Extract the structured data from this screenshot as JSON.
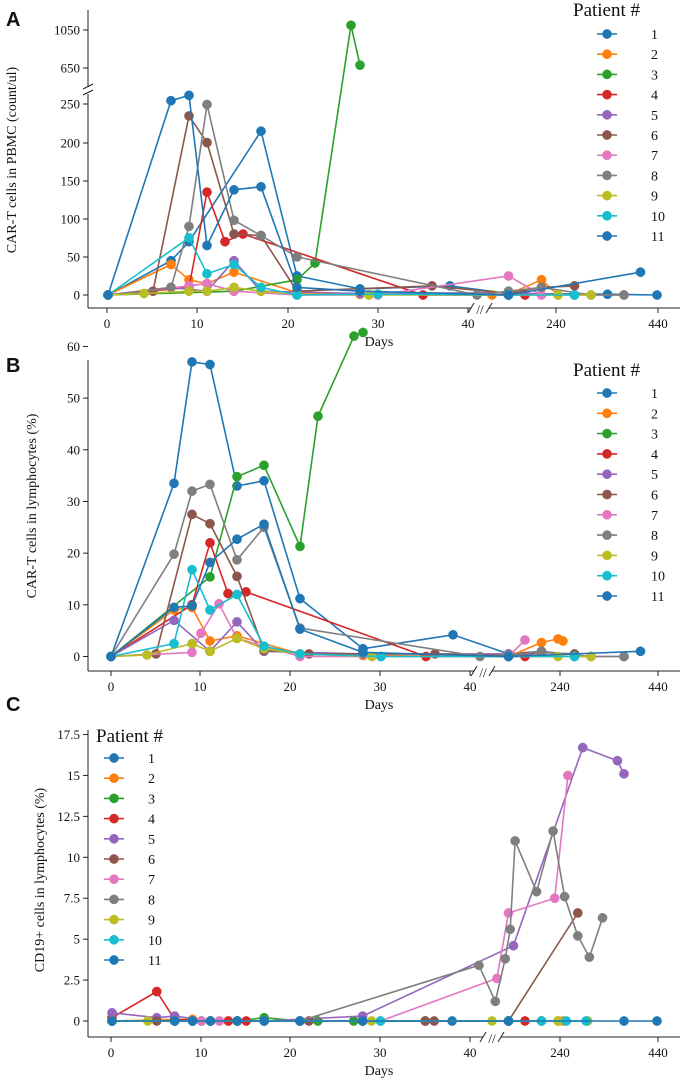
{
  "figure": {
    "colors": [
      "#1f77b4",
      "#ff7f0e",
      "#2ca02c",
      "#d62728",
      "#9467bd",
      "#8c564b",
      "#e377c2",
      "#7f7f7f",
      "#bcbd22",
      "#17becf",
      "#1f77b4"
    ]
  },
  "chart_data": [
    {
      "panel": "A",
      "type": "line",
      "title": "",
      "xlabel": "Days",
      "ylabel": "CAR-T cells in PBMC  (count/ul)",
      "legend_title": "Patient #",
      "legend_position": "right",
      "xticks": [
        "0",
        "10",
        "20",
        "30",
        "40",
        "240",
        "440"
      ],
      "x_axis_break": "//",
      "y_axis_break": "//",
      "yticks": [
        "0",
        "50",
        "100",
        "150",
        "200",
        "250",
        "650",
        "1050"
      ],
      "series": [
        {
          "name": "1",
          "x": [
            0,
            7,
            9,
            17,
            21,
            28,
            38,
            44,
            50,
            53
          ],
          "y": [
            0,
            45,
            70,
            215,
            25,
            8,
            12,
            2,
            1,
            0
          ]
        },
        {
          "name": "2",
          "x": [
            0,
            7,
            9,
            11,
            14,
            21,
            28,
            43,
            44,
            46,
            47
          ],
          "y": [
            0,
            40,
            20,
            15,
            30,
            3,
            1,
            0,
            1,
            20,
            0
          ]
        },
        {
          "name": "3",
          "x": [
            0,
            14,
            21,
            23,
            27,
            28
          ],
          "y": [
            0,
            5,
            20,
            42,
            1100,
            680
          ]
        },
        {
          "name": "4",
          "x": [
            0,
            9,
            11,
            13,
            15,
            35,
            44,
            45
          ],
          "y": [
            0,
            10,
            135,
            70,
            80,
            0,
            0,
            0
          ]
        },
        {
          "name": "5",
          "x": [
            0,
            7,
            11,
            14,
            17,
            28,
            44,
            48,
            51
          ],
          "y": [
            0,
            10,
            5,
            45,
            5,
            2,
            3,
            0,
            0
          ]
        },
        {
          "name": "6",
          "x": [
            0,
            5,
            9,
            11,
            14,
            17,
            21,
            36,
            44,
            46,
            48
          ],
          "y": [
            0,
            5,
            235,
            200,
            80,
            78,
            5,
            12,
            2,
            10,
            12
          ]
        },
        {
          "name": "7",
          "x": [
            0,
            9,
            11,
            14,
            21,
            30,
            44,
            46
          ],
          "y": [
            0,
            12,
            15,
            5,
            0,
            0,
            25,
            0
          ]
        },
        {
          "name": "8",
          "x": [
            0,
            7,
            9,
            11,
            14,
            17,
            21,
            41,
            44,
            46,
            49,
            51
          ],
          "y": [
            0,
            10,
            90,
            250,
            98,
            78,
            50,
            0,
            5,
            10,
            0,
            0
          ]
        },
        {
          "name": "9",
          "x": [
            0,
            4,
            9,
            11,
            14,
            17,
            21,
            29,
            44,
            47,
            49
          ],
          "y": [
            0,
            2,
            5,
            5,
            10,
            5,
            1,
            0,
            0,
            0,
            0
          ]
        },
        {
          "name": "10",
          "x": [
            0,
            9,
            11,
            14,
            17,
            21,
            30,
            44,
            48
          ],
          "y": [
            0,
            75,
            28,
            40,
            10,
            0,
            1,
            0,
            0
          ]
        },
        {
          "name": "11",
          "x": [
            0,
            7,
            9,
            11,
            14,
            17,
            21,
            28,
            44,
            52
          ],
          "y": [
            0,
            255,
            262,
            65,
            138,
            142,
            10,
            5,
            0,
            30
          ]
        }
      ]
    },
    {
      "panel": "B",
      "type": "line",
      "title": "",
      "xlabel": "Days",
      "ylabel": "CAR-T cells in lymphocytes (%)",
      "legend_title": "Patient #",
      "legend_position": "right",
      "xticks": [
        "0",
        "10",
        "20",
        "30",
        "40",
        "240",
        "440"
      ],
      "x_axis_break": "//",
      "yticks": [
        "0",
        "10",
        "20",
        "30",
        "40",
        "50",
        "60"
      ],
      "ylim": [
        -1,
        65
      ],
      "series": [
        {
          "name": "1",
          "x": [
            0,
            7,
            9,
            11,
            14,
            17,
            21,
            28,
            38,
            44,
            46
          ],
          "y": [
            0,
            33.5,
            57,
            56.5,
            33,
            34,
            11.2,
            1.5,
            4.2,
            0.5,
            1
          ]
        },
        {
          "name": "2",
          "x": [
            0,
            7,
            9,
            11,
            14,
            21,
            28,
            44,
            46,
            47,
            47.3
          ],
          "y": [
            0,
            9,
            9.5,
            3,
            4,
            0.5,
            0.2,
            0,
            2.7,
            3.4,
            3
          ]
        },
        {
          "name": "3",
          "x": [
            0,
            11,
            14,
            17,
            21,
            23,
            27,
            28
          ],
          "y": [
            0,
            15.4,
            34.8,
            37,
            21.3,
            46.5,
            62,
            62.7
          ]
        },
        {
          "name": "4",
          "x": [
            0,
            9,
            11,
            13,
            15,
            35,
            44,
            45
          ],
          "y": [
            0,
            10,
            22,
            12.2,
            12.5,
            0,
            0,
            0
          ]
        },
        {
          "name": "5",
          "x": [
            0,
            7,
            11,
            14,
            17,
            28,
            44,
            48,
            51
          ],
          "y": [
            0,
            7,
            1,
            6.7,
            1,
            0.5,
            0.5,
            0,
            0
          ]
        },
        {
          "name": "6",
          "x": [
            0,
            5,
            9,
            11,
            14,
            17,
            22,
            36,
            44,
            46,
            48
          ],
          "y": [
            0,
            0.5,
            27.5,
            25.7,
            15.5,
            1.2,
            0.5,
            0.5,
            0.2,
            0.8,
            0.5
          ]
        },
        {
          "name": "7",
          "x": [
            0,
            9,
            10,
            12,
            14,
            21,
            30,
            44,
            45
          ],
          "y": [
            0,
            0.8,
            4.5,
            10.2,
            3.5,
            0,
            0,
            0,
            3.2
          ]
        },
        {
          "name": "8",
          "x": [
            0,
            7,
            9,
            11,
            14,
            17,
            21,
            41,
            44,
            46,
            49,
            51
          ],
          "y": [
            0,
            19.8,
            32,
            33.3,
            18.7,
            25,
            5.5,
            0,
            0.2,
            1,
            0,
            0
          ]
        },
        {
          "name": "9",
          "x": [
            0,
            4,
            9,
            11,
            14,
            17,
            21,
            29,
            44,
            47,
            49
          ],
          "y": [
            0,
            0.3,
            2.5,
            1,
            3.5,
            1.5,
            0.5,
            0,
            0,
            0,
            0
          ]
        },
        {
          "name": "10",
          "x": [
            0,
            7,
            9,
            11,
            14,
            17,
            21,
            30,
            44,
            48
          ],
          "y": [
            0,
            2.5,
            16.8,
            9,
            12,
            2,
            0.5,
            0,
            0,
            0
          ]
        },
        {
          "name": "11",
          "x": [
            0,
            7,
            9,
            11,
            14,
            17,
            21,
            28,
            44,
            52
          ],
          "y": [
            0,
            9.5,
            9.8,
            18.2,
            22.7,
            25.6,
            5.3,
            0.8,
            0,
            1
          ]
        }
      ]
    },
    {
      "panel": "C",
      "type": "line",
      "title": "",
      "xlabel": "Days",
      "ylabel": "CD19+ cells in lymphocytes (%)",
      "legend_title": "Patient #",
      "legend_position": "top-left",
      "xticks": [
        "0",
        "10",
        "20",
        "30",
        "40",
        "240",
        "440"
      ],
      "x_axis_break": "//",
      "yticks": [
        "0",
        "2.5",
        "5",
        "7.5",
        "10",
        "12.5",
        "15",
        "17.5"
      ],
      "ylim": [
        -0.3,
        17.8
      ],
      "series": [
        {
          "name": "1",
          "x": [
            0,
            7,
            10,
            14,
            21,
            28,
            38,
            44,
            46
          ],
          "y": [
            0,
            0,
            0,
            0,
            0,
            0,
            0,
            0,
            0
          ]
        },
        {
          "name": "2",
          "x": [
            0,
            7,
            9,
            11,
            14,
            21,
            28,
            44,
            46,
            47,
            47.3
          ],
          "y": [
            0,
            0.1,
            0.1,
            0,
            0,
            0,
            0,
            0,
            0,
            0,
            0
          ]
        },
        {
          "name": "3",
          "x": [
            0,
            11,
            14,
            17,
            21,
            23,
            27,
            28
          ],
          "y": [
            0,
            0,
            0,
            0.2,
            0,
            0,
            0,
            0
          ]
        },
        {
          "name": "4",
          "x": [
            0,
            5,
            7,
            11,
            13,
            15,
            35,
            44,
            45
          ],
          "y": [
            0.2,
            1.8,
            0.1,
            0,
            0,
            0,
            0,
            0,
            0
          ]
        },
        {
          "name": "5",
          "x": [
            0,
            5,
            7,
            11,
            14,
            17,
            28,
            44.3,
            48.5,
            50.6,
            51
          ],
          "y": [
            0.5,
            0.2,
            0.3,
            0,
            0,
            0,
            0.3,
            4.6,
            16.7,
            15.9,
            15.1
          ]
        },
        {
          "name": "6",
          "x": [
            0,
            5,
            9,
            11,
            14,
            17,
            22,
            35,
            36,
            44,
            48.2
          ],
          "y": [
            0,
            0,
            0,
            0,
            0,
            0,
            0,
            0,
            0,
            0,
            6.6
          ]
        },
        {
          "name": "7",
          "x": [
            0,
            9,
            10,
            12,
            14,
            21,
            30,
            43.3,
            44,
            46.8,
            47.6
          ],
          "y": [
            0,
            0,
            0,
            0,
            0,
            0,
            0,
            2.6,
            6.6,
            7.5,
            15
          ]
        },
        {
          "name": "8",
          "x": [
            0,
            7,
            9,
            11,
            14,
            17,
            21,
            41,
            43.2,
            43.8,
            44.1,
            44.4,
            45.7,
            46.7,
            47.4,
            48.2,
            48.9,
            49.7
          ],
          "y": [
            0,
            0,
            0,
            0,
            0,
            0,
            0,
            3.4,
            1.2,
            3.8,
            5.6,
            11,
            7.9,
            11.6,
            7.6,
            5.2,
            3.9,
            6.3
          ]
        },
        {
          "name": "9",
          "x": [
            0,
            4,
            9,
            11,
            14,
            17,
            21,
            29,
            43,
            47,
            48.8
          ],
          "y": [
            0,
            0,
            0,
            0,
            0,
            0,
            0,
            0,
            0,
            0,
            0
          ]
        },
        {
          "name": "10",
          "x": [
            0,
            7,
            9,
            11,
            14,
            17,
            21,
            30,
            44,
            46,
            47.5,
            48.7
          ],
          "y": [
            0,
            0,
            0,
            0,
            0,
            0,
            0,
            0,
            0,
            0,
            0,
            0
          ]
        },
        {
          "name": "11",
          "x": [
            0,
            7,
            9,
            11,
            14,
            17,
            21,
            28,
            44,
            51,
            53
          ],
          "y": [
            0,
            0,
            0,
            0,
            0,
            0,
            0,
            0,
            0,
            0,
            0
          ]
        }
      ]
    }
  ]
}
